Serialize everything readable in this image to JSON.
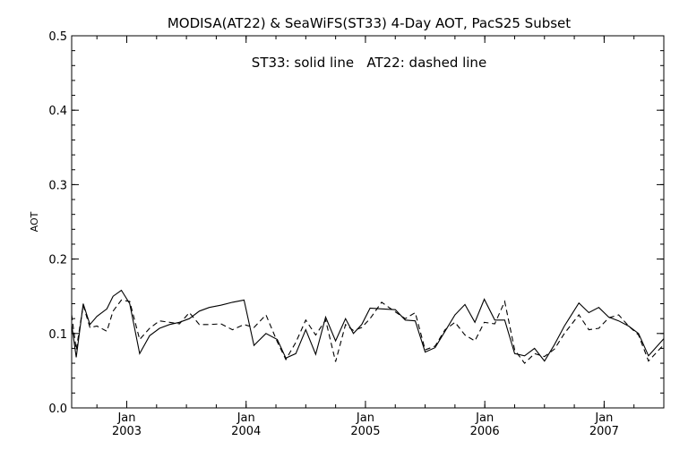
{
  "chart_data": {
    "type": "line",
    "title": "MODISA(AT22) & SeaWiFS(ST33) 4-Day AOT, PacS25 Subset",
    "annotation": "ST33: solid line   AT22: dashed line",
    "ylabel": "AOT",
    "xlabel": "",
    "ylim": [
      0.0,
      0.5
    ],
    "xlim": [
      "2002-07-15",
      "2007-07-01"
    ],
    "yticks": [
      "0.0",
      "0.1",
      "0.2",
      "0.3",
      "0.4",
      "0.5"
    ],
    "xticks": [
      {
        "month": "Jan",
        "year": "2003",
        "date": "2003-01-01"
      },
      {
        "month": "Jan",
        "year": "2004",
        "date": "2004-01-01"
      },
      {
        "month": "Jan",
        "year": "2005",
        "date": "2005-01-01"
      },
      {
        "month": "Jan",
        "year": "2006",
        "date": "2006-01-01"
      },
      {
        "month": "Jan",
        "year": "2007",
        "date": "2007-01-01"
      }
    ],
    "grid": false,
    "series": [
      {
        "name": "ST33",
        "style": "solid",
        "points": [
          [
            "2002-07-15",
            0.112
          ],
          [
            "2002-07-29",
            0.068
          ],
          [
            "2002-08-20",
            0.14
          ],
          [
            "2002-09-10",
            0.112
          ],
          [
            "2002-10-01",
            0.123
          ],
          [
            "2002-11-01",
            0.133
          ],
          [
            "2002-11-20",
            0.15
          ],
          [
            "2002-12-15",
            0.158
          ],
          [
            "2003-01-10",
            0.14
          ],
          [
            "2003-02-10",
            0.073
          ],
          [
            "2003-03-10",
            0.097
          ],
          [
            "2003-04-10",
            0.107
          ],
          [
            "2003-05-10",
            0.112
          ],
          [
            "2003-06-10",
            0.115
          ],
          [
            "2003-07-10",
            0.12
          ],
          [
            "2003-08-10",
            0.13
          ],
          [
            "2003-09-10",
            0.135
          ],
          [
            "2003-10-15",
            0.138
          ],
          [
            "2003-11-20",
            0.142
          ],
          [
            "2003-12-25",
            0.145
          ],
          [
            "2004-01-25",
            0.084
          ],
          [
            "2004-03-01",
            0.1
          ],
          [
            "2004-04-05",
            0.092
          ],
          [
            "2004-05-01",
            0.067
          ],
          [
            "2004-06-01",
            0.073
          ],
          [
            "2004-07-01",
            0.105
          ],
          [
            "2004-08-01",
            0.072
          ],
          [
            "2004-09-01",
            0.122
          ],
          [
            "2004-10-01",
            0.09
          ],
          [
            "2004-11-01",
            0.12
          ],
          [
            "2004-11-25",
            0.1
          ],
          [
            "2004-12-20",
            0.112
          ],
          [
            "2005-01-15",
            0.134
          ],
          [
            "2005-02-20",
            0.133
          ],
          [
            "2005-04-01",
            0.132
          ],
          [
            "2005-05-01",
            0.118
          ],
          [
            "2005-06-01",
            0.117
          ],
          [
            "2005-07-01",
            0.075
          ],
          [
            "2005-08-01",
            0.081
          ],
          [
            "2005-09-01",
            0.103
          ],
          [
            "2005-10-01",
            0.125
          ],
          [
            "2005-11-01",
            0.139
          ],
          [
            "2005-12-01",
            0.115
          ],
          [
            "2005-12-30",
            0.146
          ],
          [
            "2006-02-01",
            0.118
          ],
          [
            "2006-03-01",
            0.118
          ],
          [
            "2006-04-01",
            0.073
          ],
          [
            "2006-05-01",
            0.07
          ],
          [
            "2006-06-01",
            0.08
          ],
          [
            "2006-07-01",
            0.063
          ],
          [
            "2006-08-01",
            0.085
          ],
          [
            "2006-09-01",
            0.11
          ],
          [
            "2006-10-15",
            0.141
          ],
          [
            "2006-11-15",
            0.128
          ],
          [
            "2006-12-15",
            0.135
          ],
          [
            "2007-01-15",
            0.122
          ],
          [
            "2007-02-15",
            0.117
          ],
          [
            "2007-03-15",
            0.11
          ],
          [
            "2007-04-15",
            0.1
          ],
          [
            "2007-05-15",
            0.07
          ],
          [
            "2007-07-01",
            0.093
          ]
        ]
      },
      {
        "name": "AT22",
        "style": "dashed",
        "points": [
          [
            "2002-07-15",
            0.125
          ],
          [
            "2002-07-29",
            0.078
          ],
          [
            "2002-08-20",
            0.138
          ],
          [
            "2002-09-10",
            0.108
          ],
          [
            "2002-10-01",
            0.11
          ],
          [
            "2002-11-01",
            0.103
          ],
          [
            "2002-11-20",
            0.13
          ],
          [
            "2002-12-15",
            0.145
          ],
          [
            "2003-01-10",
            0.143
          ],
          [
            "2003-02-10",
            0.092
          ],
          [
            "2003-03-10",
            0.107
          ],
          [
            "2003-04-10",
            0.117
          ],
          [
            "2003-05-10",
            0.115
          ],
          [
            "2003-06-10",
            0.113
          ],
          [
            "2003-07-10",
            0.128
          ],
          [
            "2003-08-10",
            0.112
          ],
          [
            "2003-09-10",
            0.112
          ],
          [
            "2003-10-15",
            0.113
          ],
          [
            "2003-11-20",
            0.105
          ],
          [
            "2003-12-25",
            0.112
          ],
          [
            "2004-01-25",
            0.108
          ],
          [
            "2004-03-01",
            0.125
          ],
          [
            "2004-04-05",
            0.089
          ],
          [
            "2004-05-01",
            0.065
          ],
          [
            "2004-06-01",
            0.088
          ],
          [
            "2004-07-01",
            0.118
          ],
          [
            "2004-08-01",
            0.098
          ],
          [
            "2004-09-01",
            0.118
          ],
          [
            "2004-10-01",
            0.062
          ],
          [
            "2004-11-01",
            0.112
          ],
          [
            "2004-11-25",
            0.104
          ],
          [
            "2004-12-20",
            0.108
          ],
          [
            "2005-01-15",
            0.12
          ],
          [
            "2005-02-20",
            0.142
          ],
          [
            "2005-04-01",
            0.129
          ],
          [
            "2005-05-01",
            0.12
          ],
          [
            "2005-06-01",
            0.128
          ],
          [
            "2005-07-01",
            0.078
          ],
          [
            "2005-08-01",
            0.083
          ],
          [
            "2005-09-01",
            0.105
          ],
          [
            "2005-10-01",
            0.115
          ],
          [
            "2005-11-01",
            0.098
          ],
          [
            "2005-12-01",
            0.09
          ],
          [
            "2005-12-30",
            0.115
          ],
          [
            "2006-02-01",
            0.113
          ],
          [
            "2006-03-01",
            0.143
          ],
          [
            "2006-04-01",
            0.078
          ],
          [
            "2006-05-01",
            0.06
          ],
          [
            "2006-06-01",
            0.073
          ],
          [
            "2006-07-01",
            0.069
          ],
          [
            "2006-08-01",
            0.079
          ],
          [
            "2006-09-01",
            0.1
          ],
          [
            "2006-10-15",
            0.125
          ],
          [
            "2006-11-15",
            0.105
          ],
          [
            "2006-12-15",
            0.107
          ],
          [
            "2007-01-15",
            0.121
          ],
          [
            "2007-02-15",
            0.125
          ],
          [
            "2007-03-15",
            0.11
          ],
          [
            "2007-04-15",
            0.098
          ],
          [
            "2007-05-15",
            0.063
          ],
          [
            "2007-07-01",
            0.085
          ]
        ]
      }
    ]
  }
}
